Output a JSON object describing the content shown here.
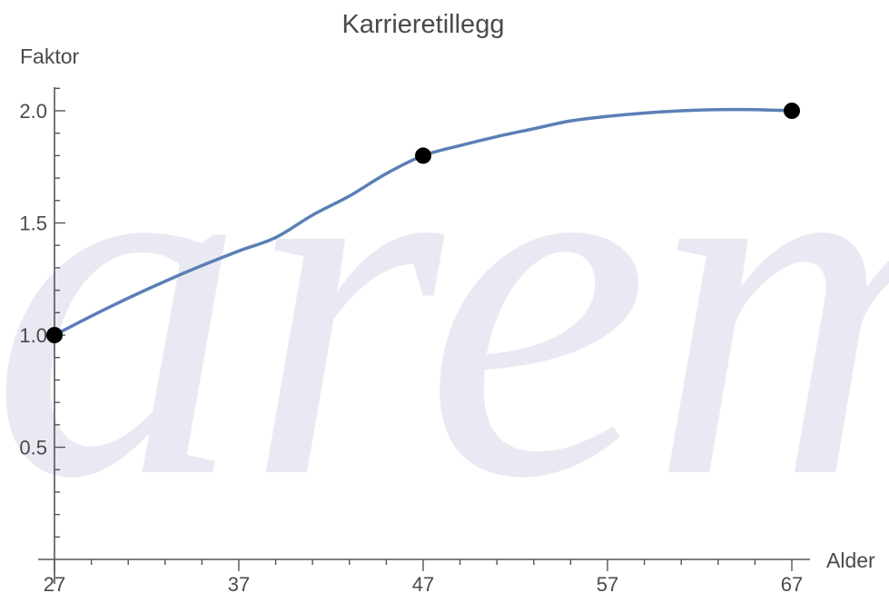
{
  "chart_data": {
    "type": "line",
    "title": "Karrieretillegg",
    "xlabel": "Alder",
    "ylabel": "Faktor",
    "xlim": [
      27,
      67
    ],
    "ylim": [
      0,
      2.1
    ],
    "x_ticks": [
      27,
      37,
      47,
      57,
      67
    ],
    "y_ticks": [
      0.5,
      1.0,
      1.5,
      2.0
    ],
    "x_tick_labels": [
      "27",
      "37",
      "47",
      "57",
      "67"
    ],
    "y_tick_labels": [
      "0.5",
      "1.0",
      "1.5",
      "2.0"
    ],
    "grid": false,
    "legend": "none",
    "series": [
      {
        "kind": "curve",
        "color": "#5a7fb5",
        "x": [
          27,
          29,
          31,
          33,
          35,
          37,
          39,
          41,
          43,
          45,
          47,
          49,
          51,
          53,
          55,
          57,
          59,
          61,
          63,
          65,
          67
        ],
        "y": [
          1.0,
          1.085,
          1.165,
          1.24,
          1.31,
          1.375,
          1.435,
          1.535,
          1.62,
          1.72,
          1.8,
          1.845,
          1.885,
          1.92,
          1.955,
          1.975,
          1.99,
          2.0,
          2.005,
          2.005,
          2.0
        ]
      },
      {
        "kind": "points",
        "color": "#000000",
        "x": [
          27,
          47,
          67
        ],
        "y": [
          1.0,
          1.8,
          2.0
        ]
      }
    ],
    "watermark": "arem"
  }
}
